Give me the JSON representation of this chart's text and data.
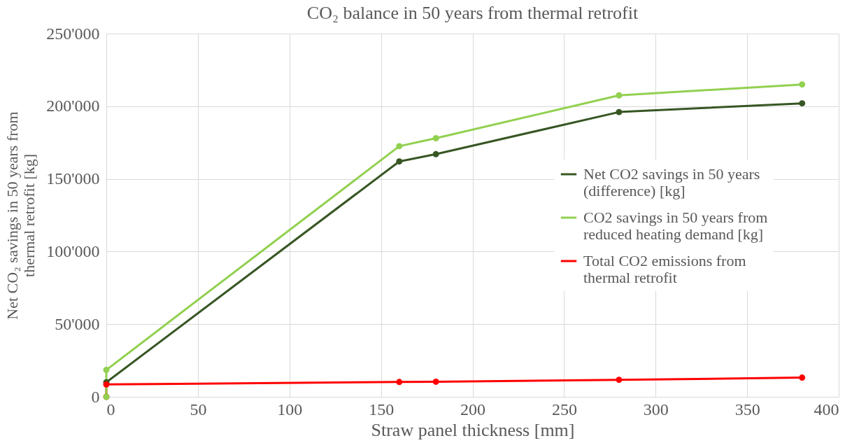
{
  "chart_data": {
    "type": "line",
    "title": "CO₂ balance in 50 years from thermal retrofit",
    "xlabel": "Straw panel thickness [mm]",
    "ylabel": "Net CO₂ savings in 50 years from thermal retrofit [kg]",
    "series": [
      {
        "name": "Net CO2 savings in 50 years (difference) [kg]",
        "color": "#375623",
        "x": [
          0,
          160,
          180,
          280,
          380
        ],
        "values": [
          10000,
          162000,
          167000,
          196000,
          202000
        ]
      },
      {
        "name": "CO2 savings in 50 years from reduced heating demand [kg]",
        "color": "#92d050",
        "x": [
          0,
          0,
          160,
          180,
          280,
          380
        ],
        "values": [
          0,
          18500,
          172500,
          178000,
          207500,
          215000
        ]
      },
      {
        "name": "Total CO2 emissions from thermal retrofit",
        "color": "#ff0000",
        "x": [
          0,
          0,
          160,
          180,
          280,
          380
        ],
        "values": [
          0,
          8500,
          10200,
          10400,
          11700,
          13200
        ]
      }
    ],
    "xlim": [
      0,
      400
    ],
    "xticks": [
      0,
      50,
      100,
      150,
      200,
      250,
      300,
      350,
      400
    ],
    "ylim": [
      0,
      250000
    ],
    "yticks": [
      0,
      {
        "value": 50000,
        "label": "50'000"
      },
      {
        "value": 100000,
        "label": "100'000"
      },
      {
        "value": 150000,
        "label": "150'000"
      },
      {
        "value": 200000,
        "label": "200'000"
      },
      {
        "value": 250000,
        "label": "250'000"
      }
    ],
    "grid": true,
    "legend": "right",
    "marker": "circle",
    "line_style": "solid"
  }
}
